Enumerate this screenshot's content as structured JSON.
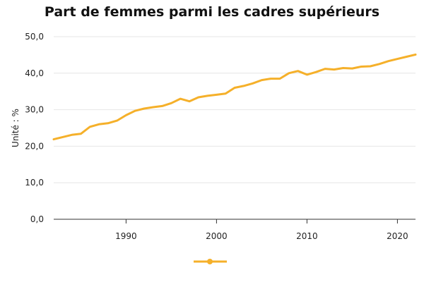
{
  "chart_data": {
    "type": "line",
    "title": "Part de femmes parmi les cadres supérieurs",
    "ylabel": "Unité : %",
    "xlabel": "",
    "xlim": [
      1982,
      2022
    ],
    "ylim": [
      0,
      50
    ],
    "x_ticks": [
      "1990",
      "2000",
      "2010",
      "2020"
    ],
    "y_ticks": [
      "0,0",
      "10,0",
      "20,0",
      "30,0",
      "40,0",
      "50,0"
    ],
    "grid": true,
    "legend": "bottom",
    "color": "#f5b02a",
    "x": [
      1982,
      1983,
      1984,
      1985,
      1986,
      1987,
      1988,
      1989,
      1990,
      1991,
      1992,
      1993,
      1994,
      1995,
      1996,
      1997,
      1998,
      1999,
      2000,
      2001,
      2002,
      2003,
      2004,
      2005,
      2006,
      2007,
      2008,
      2009,
      2010,
      2011,
      2012,
      2013,
      2014,
      2015,
      2016,
      2017,
      2018,
      2019,
      2020,
      2021,
      2022
    ],
    "series": [
      {
        "values": [
          21.9,
          22.5,
          23.1,
          23.4,
          25.3,
          26.0,
          26.3,
          27.0,
          28.5,
          29.7,
          30.3,
          30.7,
          31.0,
          31.8,
          33.0,
          32.3,
          33.4,
          33.8,
          34.1,
          34.4,
          36.0,
          36.5,
          37.2,
          38.1,
          38.5,
          38.5,
          40.0,
          40.6,
          39.6,
          40.3,
          41.2,
          41.0,
          41.4,
          41.3,
          41.8,
          41.9,
          42.5,
          43.3,
          43.9,
          44.5,
          45.1
        ]
      }
    ]
  }
}
